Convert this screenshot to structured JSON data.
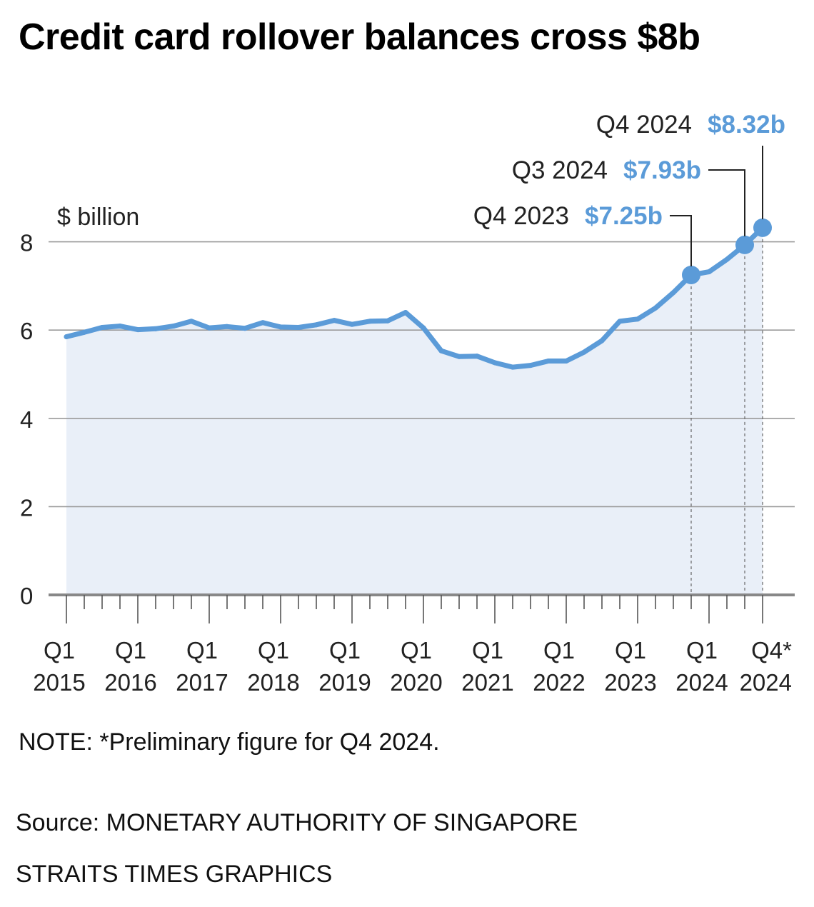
{
  "title": "Credit card rollover balances cross $8b",
  "note": "NOTE: *Preliminary figure for Q4 2024.",
  "source": "Source: MONETARY AUTHORITY OF SINGAPORE",
  "credit": "STRAITS TIMES GRAPHICS",
  "colors": {
    "line": "#5b9bd8",
    "area": "#e9eff8",
    "accent": "#5b9bd8",
    "grid": "#9a9a9a",
    "axis": "#888888",
    "text": "#222222"
  },
  "chart_data": {
    "type": "area",
    "title": "Credit card rollover balances cross $8b",
    "ylabel": "$ billion",
    "ylim": [
      0,
      8
    ],
    "yticks": [
      0,
      2,
      4,
      6,
      8
    ],
    "grid": true,
    "x": [
      "Q1 2015",
      "Q2 2015",
      "Q3 2015",
      "Q4 2015",
      "Q1 2016",
      "Q2 2016",
      "Q3 2016",
      "Q4 2016",
      "Q1 2017",
      "Q2 2017",
      "Q3 2017",
      "Q4 2017",
      "Q1 2018",
      "Q2 2018",
      "Q3 2018",
      "Q4 2018",
      "Q1 2019",
      "Q2 2019",
      "Q3 2019",
      "Q4 2019",
      "Q1 2020",
      "Q2 2020",
      "Q3 2020",
      "Q4 2020",
      "Q1 2021",
      "Q2 2021",
      "Q3 2021",
      "Q4 2021",
      "Q1 2022",
      "Q2 2022",
      "Q3 2022",
      "Q4 2022",
      "Q1 2023",
      "Q2 2023",
      "Q3 2023",
      "Q4 2023",
      "Q1 2024",
      "Q2 2024",
      "Q3 2024",
      "Q4 2024"
    ],
    "series": [
      {
        "name": "Credit card rollover balances",
        "values": [
          5.85,
          5.95,
          6.06,
          6.09,
          6.01,
          6.03,
          6.09,
          6.2,
          6.05,
          6.08,
          6.04,
          6.17,
          6.07,
          6.06,
          6.12,
          6.22,
          6.13,
          6.2,
          6.21,
          6.4,
          6.05,
          5.53,
          5.4,
          5.41,
          5.26,
          5.16,
          5.2,
          5.3,
          5.3,
          5.5,
          5.76,
          6.2,
          6.25,
          6.5,
          6.85,
          7.25,
          7.32,
          7.6,
          7.93,
          8.32
        ]
      }
    ],
    "xtick_labels": [
      {
        "index": 0,
        "line1": "Q1",
        "line2": "2015"
      },
      {
        "index": 4,
        "line1": "Q1",
        "line2": "2016"
      },
      {
        "index": 8,
        "line1": "Q1",
        "line2": "2017"
      },
      {
        "index": 12,
        "line1": "Q1",
        "line2": "2018"
      },
      {
        "index": 16,
        "line1": "Q1",
        "line2": "2019"
      },
      {
        "index": 20,
        "line1": "Q1",
        "line2": "2020"
      },
      {
        "index": 24,
        "line1": "Q1",
        "line2": "2021"
      },
      {
        "index": 28,
        "line1": "Q1",
        "line2": "2022"
      },
      {
        "index": 32,
        "line1": "Q1",
        "line2": "2023"
      },
      {
        "index": 36,
        "line1": "Q1",
        "line2": "2024"
      },
      {
        "index": 39,
        "line1": "Q4*",
        "line2": "2024"
      }
    ],
    "annotations": [
      {
        "index": 35,
        "label": "Q4 2023",
        "value_text": "$7.25b"
      },
      {
        "index": 38,
        "label": "Q3 2024",
        "value_text": "$7.93b"
      },
      {
        "index": 39,
        "label": "Q4 2024",
        "value_text": "$8.32b"
      }
    ]
  }
}
